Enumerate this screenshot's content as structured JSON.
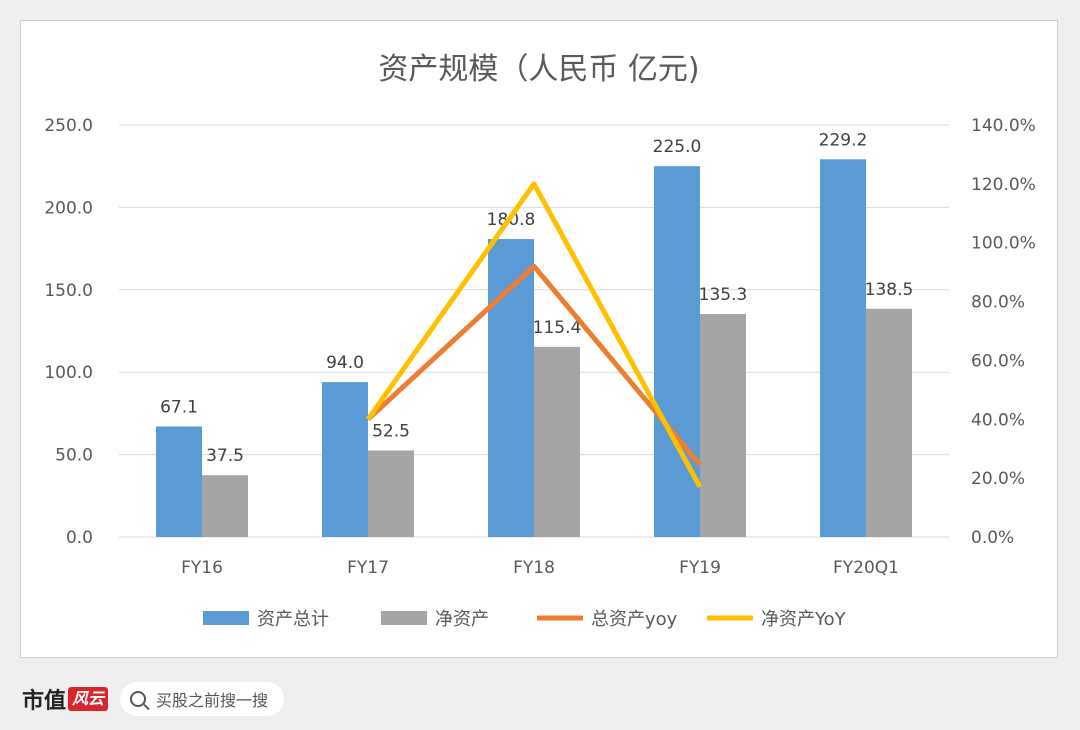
{
  "chart_data": {
    "type": "bar",
    "title": "资产规模（人民币 亿元)",
    "categories": [
      "FY16",
      "FY17",
      "FY18",
      "FY19",
      "FY20Q1"
    ],
    "series": [
      {
        "name": "资产总计",
        "type": "bar",
        "axis": "left",
        "color": "#5b9bd5",
        "values": [
          67.1,
          94.0,
          180.8,
          225.0,
          229.2
        ],
        "labels": [
          "67.1",
          "94.0",
          "180.8",
          "225.0",
          "229.2"
        ]
      },
      {
        "name": "净资产",
        "type": "bar",
        "axis": "left",
        "color": "#a5a5a5",
        "values": [
          37.5,
          52.5,
          115.4,
          135.3,
          138.5
        ],
        "labels": [
          "37.5",
          "52.5",
          "115.4",
          "135.3",
          "138.5"
        ]
      },
      {
        "name": "总资产yoy",
        "type": "line",
        "axis": "right",
        "color": "#ed7d31",
        "values": [
          null,
          0.4,
          0.92,
          0.245,
          null
        ]
      },
      {
        "name": "净资产YoY",
        "type": "line",
        "axis": "right",
        "color": "#ffc000",
        "values": [
          null,
          0.4,
          1.2,
          0.17,
          null
        ]
      }
    ],
    "yleft": {
      "ylim": [
        0,
        250
      ],
      "ticks": [
        0,
        50,
        100,
        150,
        200,
        250
      ],
      "tick_labels": [
        "0.0",
        "50.0",
        "100.0",
        "150.0",
        "200.0",
        "250.0"
      ]
    },
    "yright": {
      "ylim": [
        0,
        1.4
      ],
      "ticks": [
        0,
        0.2,
        0.4,
        0.6,
        0.8,
        1.0,
        1.2,
        1.4
      ],
      "tick_labels": [
        "0.0%",
        "20.0%",
        "40.0%",
        "60.0%",
        "80.0%",
        "100.0%",
        "120.0%",
        "140.0%"
      ]
    },
    "grid": true,
    "legend": "bottom"
  },
  "footer": {
    "brand": "市值",
    "brand_seal": "风云",
    "search_text": "买股之前搜一搜"
  }
}
